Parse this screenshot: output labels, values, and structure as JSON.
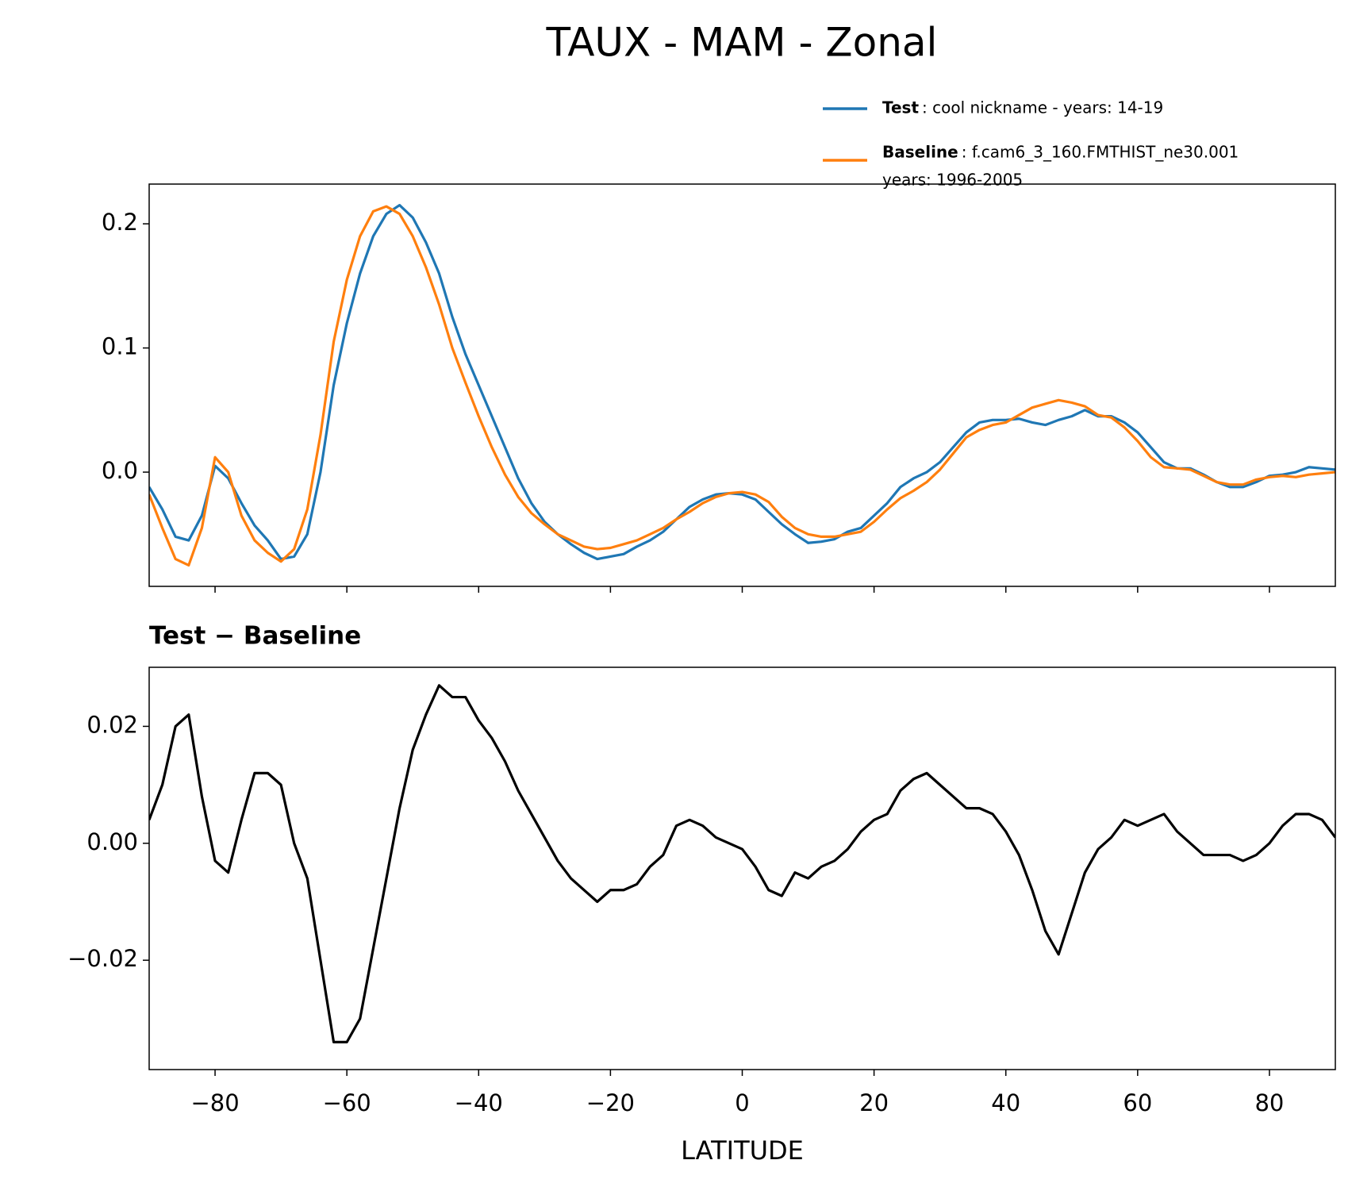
{
  "title": "TAUX - MAM - Zonal",
  "chart_data": [
    {
      "type": "line",
      "x": [
        -90,
        -88,
        -86,
        -84,
        -82,
        -80,
        -78,
        -76,
        -74,
        -72,
        -70,
        -68,
        -66,
        -64,
        -62,
        -60,
        -58,
        -56,
        -54,
        -52,
        -50,
        -48,
        -46,
        -44,
        -42,
        -40,
        -38,
        -36,
        -34,
        -32,
        -30,
        -28,
        -26,
        -24,
        -22,
        -20,
        -18,
        -16,
        -14,
        -12,
        -10,
        -8,
        -6,
        -4,
        -2,
        0,
        2,
        4,
        6,
        8,
        10,
        12,
        14,
        16,
        18,
        20,
        22,
        24,
        26,
        28,
        30,
        32,
        34,
        36,
        38,
        40,
        42,
        44,
        46,
        48,
        50,
        52,
        54,
        56,
        58,
        60,
        62,
        64,
        66,
        68,
        70,
        72,
        74,
        76,
        78,
        80,
        82,
        84,
        86,
        88,
        90
      ],
      "series": [
        {
          "name": "Test",
          "description": [
            ": cool nickname - years: 14-19"
          ],
          "color": "#1f77b4",
          "values": [
            -0.012,
            -0.03,
            -0.052,
            -0.055,
            -0.035,
            0.005,
            -0.005,
            -0.025,
            -0.043,
            -0.055,
            -0.07,
            -0.068,
            -0.05,
            0.0,
            0.07,
            0.12,
            0.16,
            0.19,
            0.208,
            0.215,
            0.205,
            0.185,
            0.16,
            0.125,
            0.095,
            0.07,
            0.045,
            0.02,
            -0.005,
            -0.025,
            -0.04,
            -0.05,
            -0.058,
            -0.065,
            -0.07,
            -0.068,
            -0.066,
            -0.06,
            -0.055,
            -0.048,
            -0.038,
            -0.028,
            -0.022,
            -0.018,
            -0.017,
            -0.018,
            -0.022,
            -0.032,
            -0.042,
            -0.05,
            -0.057,
            -0.056,
            -0.054,
            -0.048,
            -0.045,
            -0.035,
            -0.025,
            -0.012,
            -0.005,
            0.0,
            0.008,
            0.02,
            0.032,
            0.04,
            0.042,
            0.042,
            0.043,
            0.04,
            0.038,
            0.042,
            0.045,
            0.05,
            0.045,
            0.045,
            0.04,
            0.032,
            0.02,
            0.008,
            0.003,
            0.003,
            -0.002,
            -0.008,
            -0.012,
            -0.012,
            -0.008,
            -0.003,
            -0.002,
            0.0,
            0.004,
            0.003,
            0.002
          ]
        },
        {
          "name": "Baseline",
          "description": [
            ": f.cam6_3_160.FMTHIST_ne30.001",
            "years: 1996-2005"
          ],
          "color": "#ff7f0e",
          "values": [
            -0.018,
            -0.045,
            -0.07,
            -0.075,
            -0.045,
            0.012,
            0.0,
            -0.035,
            -0.055,
            -0.065,
            -0.072,
            -0.062,
            -0.03,
            0.03,
            0.105,
            0.155,
            0.19,
            0.21,
            0.214,
            0.208,
            0.19,
            0.165,
            0.135,
            0.1,
            0.072,
            0.045,
            0.02,
            -0.002,
            -0.02,
            -0.033,
            -0.042,
            -0.05,
            -0.055,
            -0.06,
            -0.062,
            -0.061,
            -0.058,
            -0.055,
            -0.05,
            -0.045,
            -0.038,
            -0.032,
            -0.025,
            -0.02,
            -0.017,
            -0.016,
            -0.018,
            -0.024,
            -0.036,
            -0.045,
            -0.05,
            -0.052,
            -0.052,
            -0.05,
            -0.048,
            -0.04,
            -0.03,
            -0.021,
            -0.015,
            -0.008,
            0.002,
            0.015,
            0.028,
            0.034,
            0.038,
            0.04,
            0.046,
            0.052,
            0.055,
            0.058,
            0.056,
            0.053,
            0.046,
            0.044,
            0.036,
            0.025,
            0.012,
            0.004,
            0.003,
            0.002,
            -0.003,
            -0.008,
            -0.01,
            -0.01,
            -0.006,
            -0.004,
            -0.003,
            -0.004,
            -0.002,
            -0.001,
            0.0
          ]
        }
      ],
      "xlim": [
        -90,
        90
      ],
      "xticks": [
        -80,
        -60,
        -40,
        -20,
        0,
        20,
        40,
        60,
        80
      ],
      "ylim": [
        -0.092,
        0.232
      ],
      "yticks": [
        {
          "value": 0,
          "label": "0.0"
        },
        0.1,
        0.2
      ],
      "legend": "upper right"
    },
    {
      "type": "line",
      "title": "Test − Baseline",
      "xlabel": "LATITUDE",
      "x": [
        -90,
        -88,
        -86,
        -84,
        -82,
        -80,
        -78,
        -76,
        -74,
        -72,
        -70,
        -68,
        -66,
        -64,
        -62,
        -60,
        -58,
        -56,
        -54,
        -52,
        -50,
        -48,
        -46,
        -44,
        -42,
        -40,
        -38,
        -36,
        -34,
        -32,
        -30,
        -28,
        -26,
        -24,
        -22,
        -20,
        -18,
        -16,
        -14,
        -12,
        -10,
        -8,
        -6,
        -4,
        -2,
        0,
        2,
        4,
        6,
        8,
        10,
        12,
        14,
        16,
        18,
        20,
        22,
        24,
        26,
        28,
        30,
        32,
        34,
        36,
        38,
        40,
        42,
        44,
        46,
        48,
        50,
        52,
        54,
        56,
        58,
        60,
        62,
        64,
        66,
        68,
        70,
        72,
        74,
        76,
        78,
        80,
        82,
        84,
        86,
        88,
        90
      ],
      "color": "#000000",
      "values": [
        0.004,
        0.01,
        0.02,
        0.022,
        0.008,
        -0.003,
        -0.005,
        0.004,
        0.012,
        0.012,
        0.01,
        0.0,
        -0.006,
        -0.02,
        -0.034,
        -0.034,
        -0.03,
        -0.018,
        -0.006,
        0.006,
        0.016,
        0.022,
        0.027,
        0.025,
        0.025,
        0.021,
        0.018,
        0.014,
        0.009,
        0.005,
        0.001,
        -0.003,
        -0.006,
        -0.008,
        -0.01,
        -0.008,
        -0.008,
        -0.007,
        -0.004,
        -0.002,
        0.003,
        0.004,
        0.003,
        0.001,
        0.0,
        -0.001,
        -0.004,
        -0.008,
        -0.009,
        -0.005,
        -0.006,
        -0.004,
        -0.003,
        -0.001,
        0.002,
        0.004,
        0.005,
        0.009,
        0.011,
        0.012,
        0.01,
        0.008,
        0.006,
        0.006,
        0.005,
        0.002,
        -0.002,
        -0.008,
        -0.015,
        -0.019,
        -0.012,
        -0.005,
        -0.001,
        0.001,
        0.004,
        0.003,
        0.004,
        0.005,
        0.002,
        0.0,
        -0.002,
        -0.002,
        -0.002,
        -0.003,
        -0.002,
        0.0,
        0.003,
        0.005,
        0.005,
        0.004,
        0.001
      ],
      "xlim": [
        -90,
        90
      ],
      "xticks": [
        {
          "value": -80,
          "label": "−80"
        },
        {
          "value": -60,
          "label": "−60"
        },
        {
          "value": -40,
          "label": "−40"
        },
        {
          "value": -20,
          "label": "−20"
        },
        0,
        20,
        40,
        60,
        80
      ],
      "ylim": [
        -0.0387,
        0.0301
      ],
      "yticks": [
        {
          "value": -0.02,
          "label": "−0.02"
        },
        {
          "value": 0,
          "label": "0.00"
        },
        0.02
      ]
    }
  ]
}
